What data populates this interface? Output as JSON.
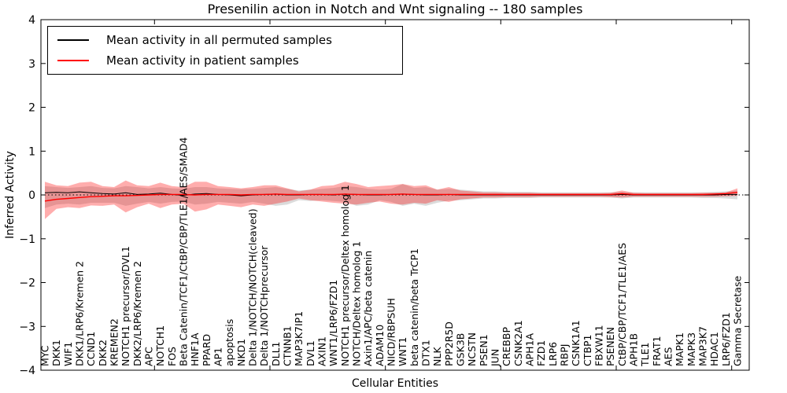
{
  "figure": {
    "title": "Presenilin action in Notch and Wnt signaling -- 180 samples",
    "xlabel": "Cellular Entities",
    "ylabel": "Inferred Activity"
  },
  "legend": {
    "items": [
      {
        "label": "Mean activity in all permuted samples",
        "color": "#000000"
      },
      {
        "label": "Mean activity in patient samples",
        "color": "#ff0000"
      }
    ]
  },
  "chart_data": {
    "type": "line",
    "title": "Presenilin action in Notch and Wnt signaling -- 180 samples",
    "xlabel": "Cellular Entities",
    "ylabel": "Inferred Activity",
    "ylim": [
      -4,
      4
    ],
    "yticks": [
      4,
      3,
      2,
      1,
      0,
      -1,
      -2,
      -3,
      -4
    ],
    "grid": false,
    "legend_position": "upper left",
    "zero_line": true,
    "categories": [
      "MYC",
      "DKK1",
      "WIF1",
      "DKK1/LRP6/Kremen 2",
      "CCND1",
      "DKK2",
      "KREMEN2",
      "NOTCH1 precursor/DVL1",
      "DKK2/LRP6/Kremen 2",
      "APC",
      "NOTCH1",
      "FOS",
      "Beta Catenin/TCF1/CtBP/CBP/TLE1/AES/SMAD4",
      "HNF1A",
      "PPARD",
      "AP1",
      "apoptosis",
      "NKD1",
      "Delta 1/NOTCH/NOTCH(cleaved)",
      "Delta 1/NOTCHprecursor",
      "DLL1",
      "CTNNB1",
      "MAP3K7IP1",
      "DVL1",
      "AXIN1",
      "WNT1/LRP6/FZD1",
      "NOTCH1 precursor/Deltex homolog 1",
      "NOTCH/Deltex homolog 1",
      "Axin1/APC/beta catenin",
      "ADAM10",
      "NICD/RBPSUH",
      "WNT1",
      "beta catenin/beta TrCP1",
      "DTX1",
      "NLK",
      "PPP2R5D",
      "GSK3B",
      "NCSTN",
      "PSEN1",
      "JUN",
      "CREBBP",
      "CSNK2A1",
      "APH1A",
      "FZD1",
      "LRP6",
      "RBPJ",
      "CSNK1A1",
      "CTBP1",
      "FBXW11",
      "PSENEN",
      "CtBP/CBP/TCF1/TLE1/AES",
      "APH1B",
      "TLE1",
      "FRAT1",
      "AES",
      "MAPK1",
      "MAPK3",
      "MAP3K7",
      "HDAC1",
      "LRP6/FZD1",
      "Gamma Secretase"
    ],
    "series": [
      {
        "name": "Mean activity in all permuted samples",
        "color": "#000000",
        "values": [
          0.05,
          0.06,
          0.05,
          0.07,
          0.05,
          0.03,
          0.02,
          0.05,
          0.01,
          0.02,
          0.04,
          0.01,
          -0.01,
          0.02,
          0.03,
          0.01,
          0,
          -0.02,
          0,
          0.01,
          0.02,
          0,
          0,
          0.01,
          0.01,
          0,
          0.02,
          0.01,
          0,
          0,
          0.01,
          0.02,
          0.01,
          0,
          0,
          0.01,
          0,
          0,
          0,
          0,
          0,
          0,
          0,
          0,
          0,
          0,
          0,
          0,
          0,
          0,
          0.01,
          0,
          0,
          0,
          0,
          0,
          0,
          0,
          0,
          0.01,
          0.01
        ]
      },
      {
        "name": "Mean activity in patient samples",
        "color": "#ff0000",
        "values": [
          -0.14,
          -0.1,
          -0.08,
          -0.06,
          -0.04,
          -0.03,
          -0.02,
          -0.02,
          -0.01,
          0,
          0.01,
          0.01,
          0.01,
          0,
          0.01,
          0.01,
          0.01,
          0,
          0.01,
          0.01,
          0.02,
          0.01,
          0.01,
          0.01,
          0.01,
          0.01,
          0.02,
          0.01,
          0.01,
          0.01,
          0.01,
          0.02,
          0.01,
          0.01,
          0.01,
          0.01,
          0.01,
          0.01,
          0.01,
          0.01,
          0.01,
          0.01,
          0.01,
          0.01,
          0.01,
          0.01,
          0.01,
          0.01,
          0.01,
          0.01,
          0.03,
          0.01,
          0.01,
          0.01,
          0.01,
          0.01,
          0.01,
          0.01,
          0.02,
          0.03,
          0.06
        ]
      }
    ],
    "bands": [
      {
        "name": "permuted-samples-range",
        "color": "#999999",
        "opacity": 0.35,
        "upper": [
          0.2,
          0.18,
          0.16,
          0.18,
          0.2,
          0.16,
          0.15,
          0.2,
          0.18,
          0.15,
          0.18,
          0.15,
          0.14,
          0.18,
          0.18,
          0.15,
          0.14,
          0.13,
          0.14,
          0.16,
          0.18,
          0.14,
          0.1,
          0.12,
          0.14,
          0.16,
          0.2,
          0.18,
          0.14,
          0.12,
          0.14,
          0.25,
          0.16,
          0.18,
          0.12,
          0.14,
          0.12,
          0.1,
          0.08,
          0.08,
          0.07,
          0.07,
          0.07,
          0.06,
          0.06,
          0.06,
          0.06,
          0.06,
          0.06,
          0.06,
          0.07,
          0.06,
          0.06,
          0.06,
          0.06,
          0.06,
          0.06,
          0.06,
          0.07,
          0.08,
          0.1
        ],
        "lower": [
          -0.3,
          -0.22,
          -0.2,
          -0.22,
          -0.18,
          -0.18,
          -0.18,
          -0.25,
          -0.2,
          -0.16,
          -0.2,
          -0.16,
          -0.15,
          -0.22,
          -0.2,
          -0.16,
          -0.18,
          -0.2,
          -0.16,
          -0.2,
          -0.25,
          -0.22,
          -0.12,
          -0.14,
          -0.12,
          -0.14,
          -0.16,
          -0.25,
          -0.22,
          -0.12,
          -0.16,
          -0.25,
          -0.2,
          -0.25,
          -0.18,
          -0.13,
          -0.12,
          -0.1,
          -0.08,
          -0.08,
          -0.07,
          -0.07,
          -0.07,
          -0.06,
          -0.06,
          -0.06,
          -0.06,
          -0.06,
          -0.06,
          -0.06,
          -0.08,
          -0.06,
          -0.06,
          -0.06,
          -0.06,
          -0.06,
          -0.06,
          -0.07,
          -0.07,
          -0.08,
          -0.1
        ]
      },
      {
        "name": "patient-samples-range",
        "color": "#ff0000",
        "opacity": 0.32,
        "upper": [
          0.3,
          0.22,
          0.2,
          0.28,
          0.3,
          0.2,
          0.18,
          0.33,
          0.22,
          0.2,
          0.28,
          0.2,
          0.18,
          0.3,
          0.3,
          0.2,
          0.18,
          0.15,
          0.18,
          0.22,
          0.22,
          0.15,
          0.08,
          0.12,
          0.2,
          0.22,
          0.3,
          0.25,
          0.18,
          0.2,
          0.22,
          0.25,
          0.2,
          0.22,
          0.12,
          0.18,
          0.1,
          0.08,
          0.06,
          0.06,
          0.05,
          0.05,
          0.05,
          0.04,
          0.04,
          0.04,
          0.04,
          0.04,
          0.04,
          0.05,
          0.1,
          0.05,
          0.04,
          0.04,
          0.04,
          0.04,
          0.04,
          0.05,
          0.05,
          0.06,
          0.15
        ],
        "lower": [
          -0.55,
          -0.32,
          -0.28,
          -0.3,
          -0.24,
          -0.25,
          -0.22,
          -0.4,
          -0.28,
          -0.2,
          -0.3,
          -0.22,
          -0.2,
          -0.38,
          -0.33,
          -0.22,
          -0.25,
          -0.28,
          -0.22,
          -0.25,
          -0.2,
          -0.15,
          -0.08,
          -0.12,
          -0.15,
          -0.18,
          -0.2,
          -0.22,
          -0.18,
          -0.15,
          -0.2,
          -0.22,
          -0.18,
          -0.2,
          -0.12,
          -0.16,
          -0.1,
          -0.08,
          -0.06,
          -0.06,
          -0.05,
          -0.05,
          -0.05,
          -0.04,
          -0.04,
          -0.04,
          -0.04,
          -0.04,
          -0.04,
          -0.05,
          -0.06,
          -0.04,
          -0.04,
          -0.04,
          -0.04,
          -0.04,
          -0.04,
          -0.04,
          -0.04,
          -0.03,
          -0.02
        ]
      }
    ]
  }
}
